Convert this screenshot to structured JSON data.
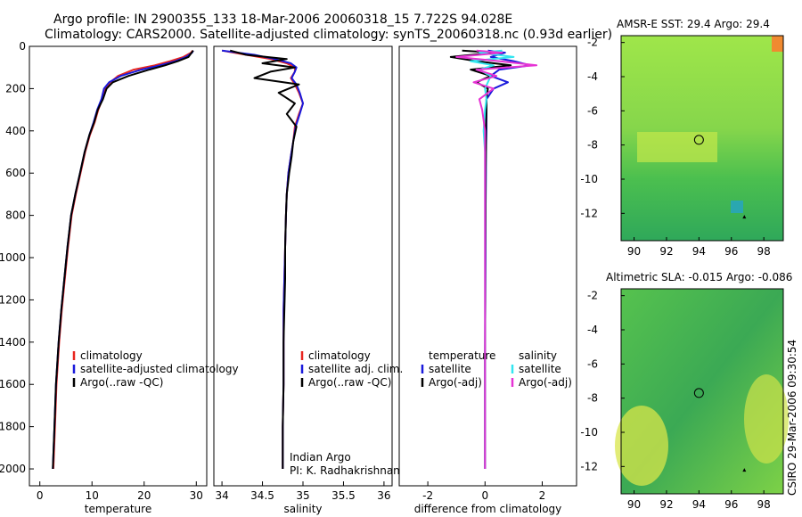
{
  "header": {
    "line1": "Argo profile: IN 2900355_133 18-Mar-2006 20060318_15 7.722S 94.028E",
    "line2": "Climatology: CARS2000. Satellite-adjusted climatology: synTS_20060318.nc (0.93d earlier)"
  },
  "side_label": "CSIRO 29-Mar-2006 09:30:54",
  "colors": {
    "climatology": "#e8251f",
    "satellite": "#1a1adc",
    "argo": "#000000",
    "satellite_sal": "#33e6f0",
    "argo_sal": "#e633d4"
  },
  "chart_data": [
    {
      "type": "line",
      "xlabel": "temperature",
      "xticks": [
        "0",
        "10",
        "20",
        "30"
      ],
      "yticks": [
        "0",
        "200",
        "400",
        "600",
        "800",
        "1000",
        "1200",
        "1400",
        "1600",
        "1800",
        "2000"
      ],
      "xlim": [
        -2,
        32
      ],
      "ylim": [
        2080,
        0
      ],
      "legend": [
        "climatology",
        "satellite-adjusted climatology",
        "Argo(..raw -QC)"
      ],
      "series": [
        {
          "name": "climatology",
          "color": "climatology",
          "x": [
            29.3,
            29.0,
            27.5,
            25,
            22,
            18,
            15,
            13.5,
            12.5,
            12,
            11.2,
            10.5,
            9.6,
            8.7,
            7.8,
            6.9,
            6.1,
            5.4,
            4.8,
            4.2,
            3.7,
            3.2,
            2.9,
            2.6
          ],
          "y": [
            20,
            30,
            50,
            70,
            90,
            110,
            140,
            170,
            200,
            250,
            300,
            360,
            420,
            500,
            600,
            700,
            800,
            950,
            1100,
            1250,
            1400,
            1600,
            1800,
            2000
          ]
        },
        {
          "name": "satellite-adjusted climatology",
          "color": "satellite",
          "x": [
            29.4,
            29.2,
            28,
            26,
            23,
            19.5,
            15.5,
            13.3,
            12.3,
            11.8,
            11.0,
            10.3,
            9.5,
            8.6,
            7.7,
            6.8,
            6.0,
            5.3,
            4.7,
            4.1,
            3.6,
            3.1,
            2.8,
            2.5
          ],
          "y": [
            20,
            30,
            50,
            70,
            90,
            110,
            140,
            170,
            200,
            250,
            300,
            360,
            420,
            500,
            600,
            700,
            800,
            950,
            1100,
            1250,
            1400,
            1600,
            1800,
            2000
          ]
        },
        {
          "name": "Argo(..raw -QC)",
          "color": "argo",
          "x": [
            29.4,
            29.1,
            28.5,
            26.5,
            24,
            21,
            17,
            14,
            12.8,
            12.1,
            11.1,
            10.4,
            9.5,
            8.6,
            7.7,
            6.8,
            6.0,
            5.3,
            4.7,
            4.1,
            3.6,
            3.1,
            2.8,
            2.5
          ],
          "y": [
            20,
            30,
            50,
            70,
            90,
            110,
            140,
            170,
            200,
            250,
            300,
            360,
            420,
            500,
            600,
            700,
            800,
            950,
            1100,
            1250,
            1400,
            1600,
            1800,
            2000
          ]
        }
      ]
    },
    {
      "type": "line",
      "xlabel": "salinity",
      "xticks": [
        "34",
        "34.5",
        "35",
        "35.5",
        "36"
      ],
      "yticks": [],
      "xlim": [
        33.9,
        36.1
      ],
      "ylim": [
        2080,
        0
      ],
      "legend": [
        "climatology",
        "satellite adj. clim.",
        "Argo(..raw -QC)"
      ],
      "annotation": [
        "Indian Argo",
        "PI: K. Radhakrishnan"
      ],
      "series": [
        {
          "name": "climatology",
          "color": "climatology",
          "x": [
            34.0,
            34.3,
            34.6,
            34.8,
            34.9,
            34.9,
            34.85,
            34.9,
            34.95,
            35.0,
            34.95,
            34.9,
            34.88,
            34.85,
            34.82,
            34.8,
            34.79,
            34.78,
            34.77,
            34.76,
            34.76,
            34.76,
            34.75,
            34.75
          ],
          "y": [
            20,
            40,
            60,
            80,
            100,
            120,
            150,
            180,
            220,
            270,
            320,
            380,
            450,
            520,
            600,
            700,
            800,
            950,
            1100,
            1250,
            1400,
            1600,
            1800,
            2000
          ]
        },
        {
          "name": "satellite adj. clim.",
          "color": "satellite",
          "x": [
            34.0,
            34.4,
            34.65,
            34.85,
            34.92,
            34.9,
            34.86,
            34.92,
            34.96,
            35.0,
            34.96,
            34.91,
            34.88,
            34.85,
            34.82,
            34.8,
            34.79,
            34.78,
            34.77,
            34.76,
            34.76,
            34.76,
            34.75,
            34.75
          ],
          "y": [
            20,
            40,
            60,
            80,
            100,
            120,
            150,
            180,
            220,
            270,
            320,
            380,
            450,
            520,
            600,
            700,
            800,
            950,
            1100,
            1250,
            1400,
            1600,
            1800,
            2000
          ]
        },
        {
          "name": "Argo(..raw -QC)",
          "color": "argo",
          "x": [
            34.1,
            34.3,
            34.8,
            34.5,
            34.9,
            34.6,
            34.4,
            34.95,
            34.7,
            34.9,
            34.8,
            34.92,
            34.88,
            34.86,
            34.83,
            34.8,
            34.79,
            34.78,
            34.78,
            34.77,
            34.76,
            34.76,
            34.75,
            34.75
          ],
          "y": [
            20,
            40,
            60,
            80,
            100,
            120,
            150,
            180,
            220,
            270,
            320,
            380,
            450,
            520,
            600,
            700,
            800,
            950,
            1100,
            1250,
            1400,
            1600,
            1800,
            2000
          ]
        }
      ]
    },
    {
      "type": "line",
      "xlabel": "difference from climatology",
      "xticks": [
        "-2",
        "0",
        "2"
      ],
      "yticks": [],
      "xlim": [
        -3,
        3.2
      ],
      "ylim": [
        2080,
        0
      ],
      "legend_temperature": [
        "temperature",
        "satellite",
        "Argo(-adj)"
      ],
      "legend_salinity": [
        "salinity",
        "satellite",
        "Argo(-adj)"
      ],
      "series": [
        {
          "name": "temperature satellite",
          "color": "satellite",
          "x": [
            0.1,
            0.7,
            0.2,
            1.0,
            1.6,
            0.5,
            0.2,
            0.8,
            0.3,
            0.05,
            0.05,
            0.05,
            0.03,
            0.03,
            0.02,
            0.02,
            0.01,
            0.0,
            0.0,
            0.0
          ],
          "y": [
            20,
            30,
            50,
            70,
            90,
            110,
            140,
            170,
            200,
            250,
            300,
            400,
            500,
            600,
            800,
            1000,
            1200,
            1500,
            1800,
            2000
          ]
        },
        {
          "name": "temperature Argo(-adj)",
          "color": "argo",
          "x": [
            -0.8,
            0.3,
            -1.2,
            -0.3,
            0.9,
            -0.5,
            0.2,
            -0.3,
            0.1,
            0.05,
            0.05,
            0.03,
            0.03,
            0.02,
            0.02,
            0.01,
            0.01,
            0.0,
            0.0,
            0.0
          ],
          "y": [
            20,
            30,
            50,
            70,
            90,
            110,
            140,
            170,
            200,
            250,
            300,
            400,
            500,
            600,
            800,
            1000,
            1200,
            1500,
            1800,
            2000
          ]
        },
        {
          "name": "salinity satellite",
          "color": "satellite_sal",
          "x": [
            0.6,
            -0.2,
            1.0,
            -0.5,
            0.3,
            -0.2,
            0.2,
            0.1,
            0.0,
            0.05,
            0.0,
            -0.05,
            0.0,
            0.0,
            0.0,
            0.0,
            0.0,
            0.0,
            0.0,
            0.0
          ],
          "y": [
            20,
            30,
            50,
            70,
            90,
            110,
            140,
            170,
            200,
            250,
            300,
            400,
            500,
            600,
            800,
            1000,
            1200,
            1500,
            1800,
            2000
          ]
        },
        {
          "name": "salinity Argo(-adj)",
          "color": "argo_sal",
          "x": [
            -0.3,
            0.6,
            -1.0,
            0.5,
            1.8,
            -0.3,
            0.4,
            -0.4,
            0.3,
            -0.2,
            -0.1,
            0.0,
            0.0,
            0.0,
            0.0,
            0.0,
            0.0,
            0.0,
            0.0,
            0.0
          ],
          "y": [
            20,
            30,
            50,
            70,
            90,
            110,
            140,
            170,
            200,
            250,
            300,
            400,
            500,
            600,
            800,
            1000,
            1200,
            1500,
            1800,
            2000
          ]
        }
      ]
    },
    {
      "type": "heatmap",
      "title": "AMSR-E SST: 29.4 Argo: 29.4",
      "xticks": [
        "90",
        "92",
        "94",
        "96",
        "98"
      ],
      "yticks": [
        "-2",
        "-4",
        "-6",
        "-8",
        "-10",
        "-12"
      ],
      "xlim": [
        89.2,
        99.2
      ],
      "ylim": [
        -13.6,
        -1.6
      ],
      "marker": {
        "lon": 94.0,
        "lat": -7.7
      }
    },
    {
      "type": "heatmap",
      "title": "Altimetric SLA: -0.015 Argo: -0.086",
      "xticks": [
        "90",
        "92",
        "94",
        "96",
        "98"
      ],
      "yticks": [
        "-2",
        "-4",
        "-6",
        "-8",
        "-10",
        "-12"
      ],
      "xlim": [
        89.2,
        99.2
      ],
      "ylim": [
        -13.6,
        -1.6
      ],
      "marker": {
        "lon": 94.0,
        "lat": -7.7
      }
    }
  ]
}
